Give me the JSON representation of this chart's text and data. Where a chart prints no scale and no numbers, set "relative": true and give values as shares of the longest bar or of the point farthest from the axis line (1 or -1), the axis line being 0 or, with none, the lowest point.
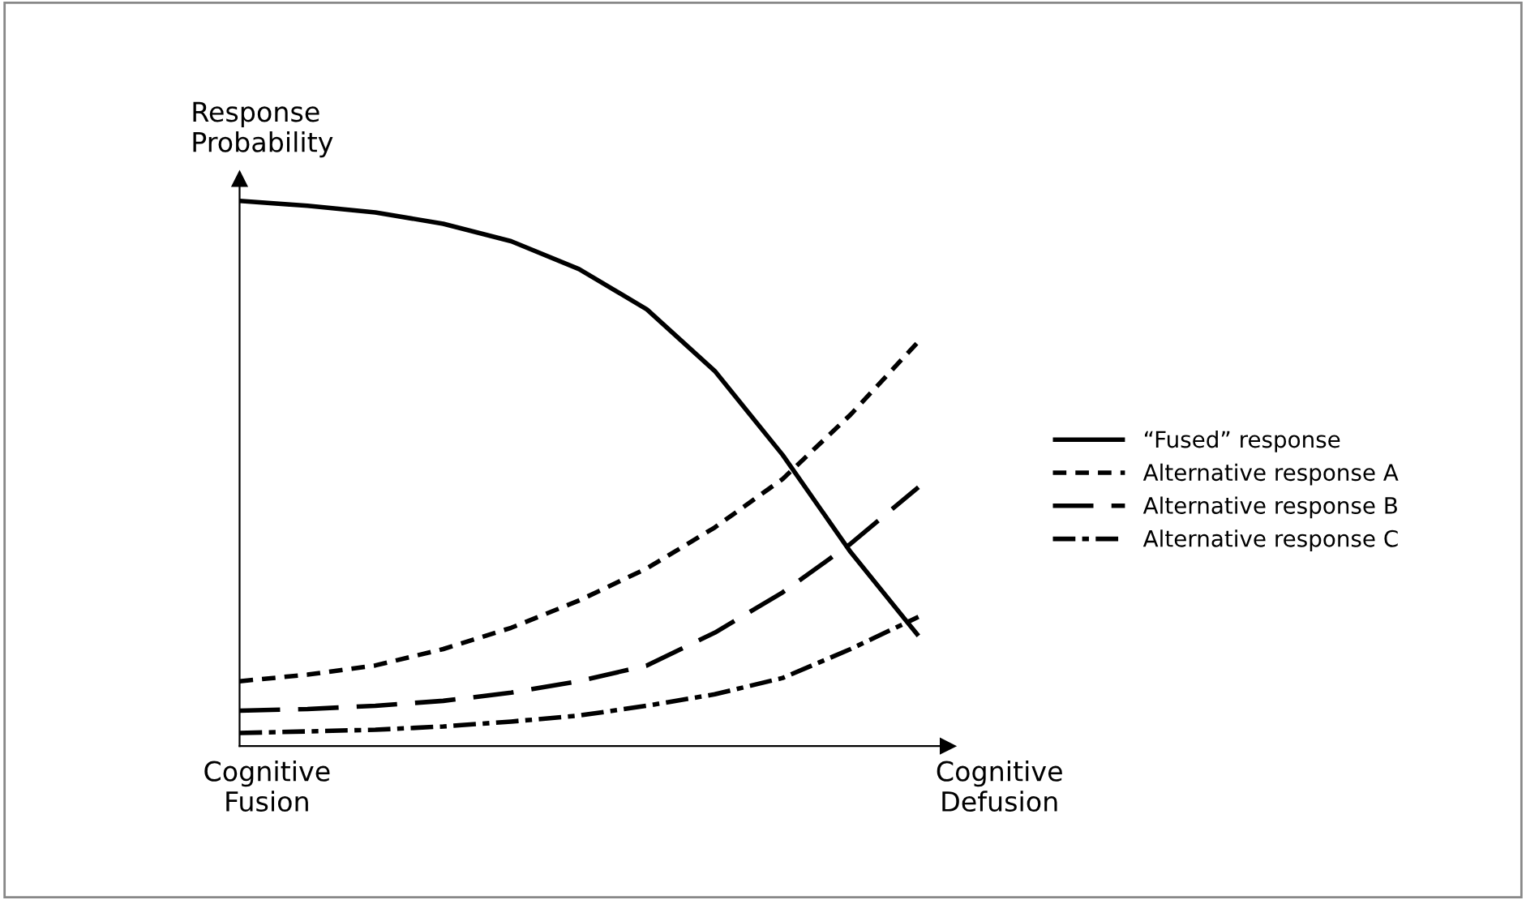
{
  "chart_data": {
    "type": "line",
    "relative": true,
    "ylabel": "Response\nProbability",
    "categories": [
      null,
      null,
      null,
      null,
      null,
      null,
      null,
      null,
      null,
      null,
      null
    ],
    "annotations": [
      "Cognitive\nFusion",
      "Cognitive\nDefusion"
    ],
    "legend": "right",
    "marker": "none",
    "series": [
      {
        "name": "“Fused” response",
        "color": "#000000",
        "line_style": "solid",
        "values": [
          1,
          0.991,
          0.979,
          0.958,
          0.926,
          0.875,
          0.801,
          0.688,
          0.534,
          0.356,
          0.202
        ]
      },
      {
        "name": "Alternative response A",
        "color": "#000000",
        "line_style": "dotted",
        "values": [
          0.119,
          0.131,
          0.148,
          0.178,
          0.217,
          0.267,
          0.326,
          0.401,
          0.49,
          0.608,
          0.742
        ]
      },
      {
        "name": "Alternative response B",
        "color": "#000000",
        "line_style": "dashed",
        "values": [
          0.065,
          0.068,
          0.074,
          0.083,
          0.098,
          0.119,
          0.148,
          0.208,
          0.282,
          0.371,
          0.475
        ]
      },
      {
        "name": "Alternative response C",
        "color": "#000000",
        "line_style": "dashdot",
        "values": [
          0.024,
          0.027,
          0.03,
          0.036,
          0.045,
          0.056,
          0.074,
          0.095,
          0.125,
          0.178,
          0.237
        ]
      }
    ]
  }
}
